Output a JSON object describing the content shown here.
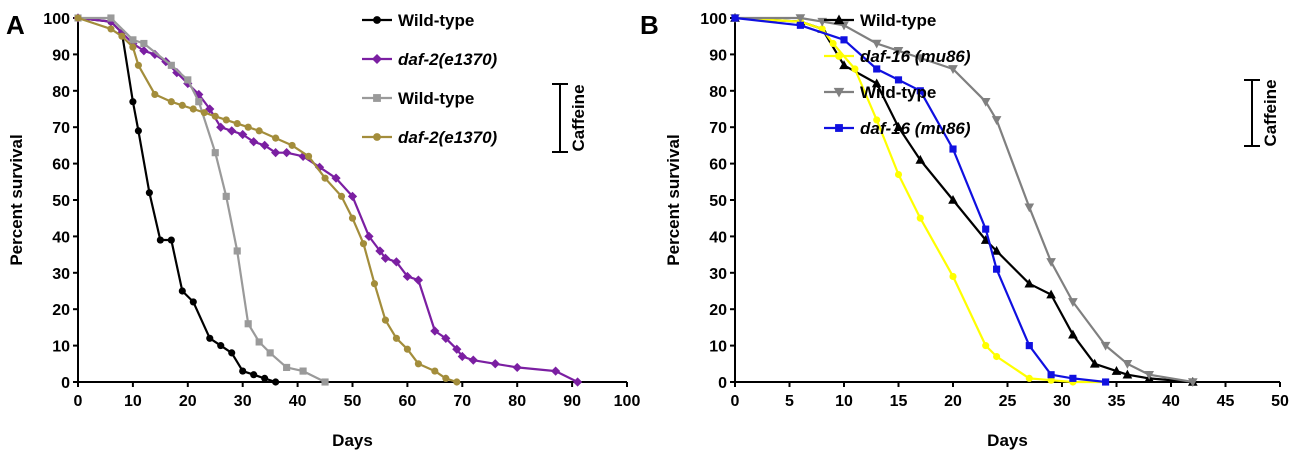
{
  "chart_data": [
    {
      "panel": "A",
      "type": "line",
      "xlabel": "Days",
      "ylabel": "Percent survival",
      "xlim": [
        0,
        100
      ],
      "ylim": [
        0,
        100
      ],
      "xticks": [
        0,
        10,
        20,
        30,
        40,
        50,
        60,
        70,
        80,
        90,
        100
      ],
      "yticks": [
        0,
        10,
        20,
        30,
        40,
        50,
        60,
        70,
        80,
        90,
        100
      ],
      "bracket_label": "Caffeine",
      "series": [
        {
          "name": "Wild-type",
          "italic": false,
          "color": "#000000",
          "marker": "circle",
          "group": "control",
          "x": [
            0,
            6,
            8,
            10,
            11,
            13,
            15,
            17,
            19,
            21,
            24,
            26,
            28,
            30,
            32,
            34,
            36
          ],
          "y": [
            100,
            99,
            96,
            77,
            69,
            52,
            39,
            39,
            25,
            22,
            12,
            10,
            8,
            3,
            2,
            1,
            0
          ]
        },
        {
          "name": "daf-2(e1370)",
          "italic": true,
          "color": "#7b1fa2",
          "marker": "diamond",
          "group": "control",
          "x": [
            0,
            6,
            8,
            10,
            12,
            14,
            16,
            18,
            20,
            22,
            24,
            26,
            28,
            30,
            32,
            34,
            36,
            38,
            41,
            44,
            47,
            50,
            53,
            55,
            56,
            58,
            60,
            62,
            65,
            67,
            69,
            70,
            72,
            76,
            80,
            87,
            91
          ],
          "y": [
            100,
            99,
            96,
            93,
            91,
            90,
            88,
            85,
            82,
            79,
            75,
            70,
            69,
            68,
            66,
            65,
            63,
            63,
            62,
            59,
            56,
            51,
            40,
            36,
            34,
            33,
            29,
            28,
            14,
            12,
            9,
            7,
            6,
            5,
            4,
            3,
            0
          ]
        },
        {
          "name": "Wild-type",
          "italic": false,
          "color": "#9a9a9a",
          "marker": "square",
          "group": "caffeine",
          "x": [
            0,
            6,
            10,
            12,
            17,
            20,
            22,
            25,
            27,
            29,
            31,
            33,
            35,
            38,
            41,
            45
          ],
          "y": [
            100,
            100,
            94,
            93,
            87,
            83,
            77,
            63,
            51,
            36,
            16,
            11,
            8,
            4,
            3,
            0
          ]
        },
        {
          "name": "daf-2(e1370)",
          "italic": true,
          "color": "#a38d3b",
          "marker": "circle",
          "group": "caffeine",
          "x": [
            0,
            6,
            8,
            10,
            11,
            14,
            17,
            19,
            21,
            23,
            25,
            27,
            29,
            31,
            33,
            36,
            39,
            42,
            45,
            48,
            50,
            52,
            54,
            56,
            58,
            60,
            62,
            65,
            67,
            69
          ],
          "y": [
            100,
            97,
            95,
            92,
            87,
            79,
            77,
            76,
            75,
            74,
            73,
            72,
            71,
            70,
            69,
            67,
            65,
            62,
            56,
            51,
            45,
            38,
            27,
            17,
            12,
            9,
            5,
            3,
            1,
            0
          ]
        }
      ]
    },
    {
      "panel": "B",
      "type": "line",
      "xlabel": "Days",
      "ylabel": "Percent survival",
      "xlim": [
        0,
        50
      ],
      "ylim": [
        0,
        100
      ],
      "xticks": [
        0,
        5,
        10,
        15,
        20,
        25,
        30,
        35,
        40,
        45,
        50
      ],
      "yticks": [
        0,
        10,
        20,
        30,
        40,
        50,
        60,
        70,
        80,
        90,
        100
      ],
      "bracket_label": "Caffeine",
      "series": [
        {
          "name": "Wild-type",
          "italic": false,
          "color": "#000000",
          "marker": "triangle-up",
          "group": "control",
          "x": [
            0,
            6,
            8,
            10,
            13,
            15,
            17,
            20,
            23,
            24,
            27,
            29,
            31,
            33,
            35,
            36,
            38,
            42
          ],
          "y": [
            100,
            99,
            97,
            87,
            82,
            70,
            61,
            50,
            39,
            36,
            27,
            24,
            13,
            5,
            3,
            2,
            1,
            0
          ]
        },
        {
          "name": "daf-16 (mu86)",
          "italic": true,
          "color": "#ffff00",
          "marker": "circle",
          "group": "control",
          "x": [
            0,
            6,
            8,
            9,
            11,
            13,
            15,
            17,
            20,
            23,
            24,
            27,
            29,
            31,
            34
          ],
          "y": [
            100,
            99,
            97,
            93,
            86,
            72,
            57,
            45,
            29,
            10,
            7,
            1,
            0.5,
            0,
            0
          ]
        },
        {
          "name": "Wild-type",
          "italic": false,
          "color": "#808080",
          "marker": "triangle-down",
          "group": "caffeine",
          "x": [
            0,
            6,
            8,
            10,
            13,
            15,
            17,
            20,
            23,
            24,
            27,
            29,
            31,
            34,
            36,
            38,
            42
          ],
          "y": [
            100,
            100,
            99,
            98,
            93,
            91,
            89,
            86,
            77,
            72,
            48,
            33,
            22,
            10,
            5,
            2,
            0
          ]
        },
        {
          "name": "daf-16 (mu86)",
          "italic": true,
          "color": "#1010e0",
          "marker": "square",
          "group": "caffeine",
          "x": [
            0,
            6,
            10,
            13,
            15,
            17,
            20,
            23,
            24,
            27,
            29,
            31,
            34
          ],
          "y": [
            100,
            98,
            94,
            86,
            83,
            80,
            64,
            42,
            31,
            10,
            2,
            1,
            0
          ]
        }
      ]
    }
  ]
}
